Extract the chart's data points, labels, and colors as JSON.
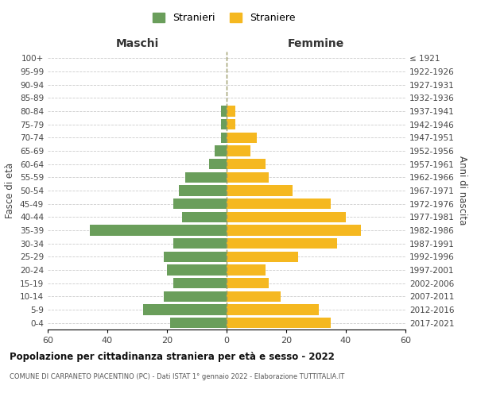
{
  "age_groups": [
    "0-4",
    "5-9",
    "10-14",
    "15-19",
    "20-24",
    "25-29",
    "30-34",
    "35-39",
    "40-44",
    "45-49",
    "50-54",
    "55-59",
    "60-64",
    "65-69",
    "70-74",
    "75-79",
    "80-84",
    "85-89",
    "90-94",
    "95-99",
    "100+"
  ],
  "birth_years": [
    "2017-2021",
    "2012-2016",
    "2007-2011",
    "2002-2006",
    "1997-2001",
    "1992-1996",
    "1987-1991",
    "1982-1986",
    "1977-1981",
    "1972-1976",
    "1967-1971",
    "1962-1966",
    "1957-1961",
    "1952-1956",
    "1947-1951",
    "1942-1946",
    "1937-1941",
    "1932-1936",
    "1927-1931",
    "1922-1926",
    "≤ 1921"
  ],
  "maschi": [
    19,
    28,
    21,
    18,
    20,
    21,
    18,
    46,
    15,
    18,
    16,
    14,
    6,
    4,
    2,
    2,
    2,
    0,
    0,
    0,
    0
  ],
  "femmine": [
    35,
    31,
    18,
    14,
    13,
    24,
    37,
    45,
    40,
    35,
    22,
    14,
    13,
    8,
    10,
    3,
    3,
    0,
    0,
    0,
    0
  ],
  "male_color": "#6a9e5b",
  "female_color": "#f5b820",
  "title1": "Popolazione per cittadinanza straniera per età e sesso - 2022",
  "title2": "COMUNE DI CARPANETO PIACENTINO (PC) - Dati ISTAT 1° gennaio 2022 - Elaborazione TUTTITALIA.IT",
  "xlabel_left": "Maschi",
  "xlabel_right": "Femmine",
  "ylabel_left": "Fasce di età",
  "ylabel_right": "Anni di nascita",
  "legend_male": "Stranieri",
  "legend_female": "Straniere",
  "xlim": 60,
  "background_color": "#ffffff",
  "grid_color": "#cccccc"
}
